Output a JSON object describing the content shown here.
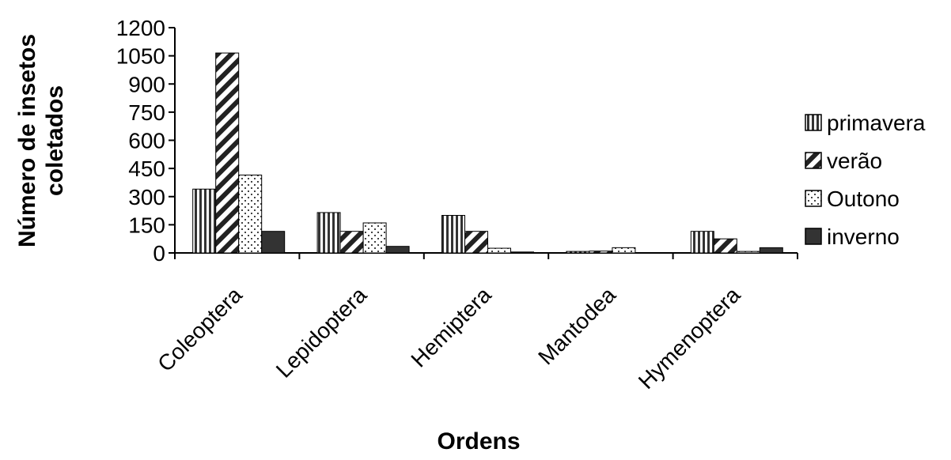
{
  "chart_data": {
    "type": "bar",
    "xlabel": "Ordens",
    "ylabel": [
      "Número de insetos",
      "coletados"
    ],
    "ylim": [
      0,
      1200
    ],
    "yticks": [
      0,
      150,
      300,
      450,
      600,
      750,
      900,
      1050,
      1200
    ],
    "categories": [
      "Coleoptera",
      "Lepidoptera",
      "Hemiptera",
      "Mantodea",
      "Hymenoptera"
    ],
    "series": [
      {
        "name": "primavera",
        "pattern": "vertical-stripes",
        "values": [
          340,
          215,
          200,
          8,
          115
        ]
      },
      {
        "name": "verão",
        "pattern": "diagonal-stripes",
        "values": [
          1065,
          115,
          115,
          10,
          75
        ]
      },
      {
        "name": "Outono",
        "pattern": "dots",
        "values": [
          415,
          160,
          25,
          28,
          8
        ]
      },
      {
        "name": "inverno",
        "pattern": "solid-dark",
        "values": [
          115,
          35,
          5,
          0,
          28
        ]
      }
    ],
    "legend_position": "right",
    "grid": false
  }
}
